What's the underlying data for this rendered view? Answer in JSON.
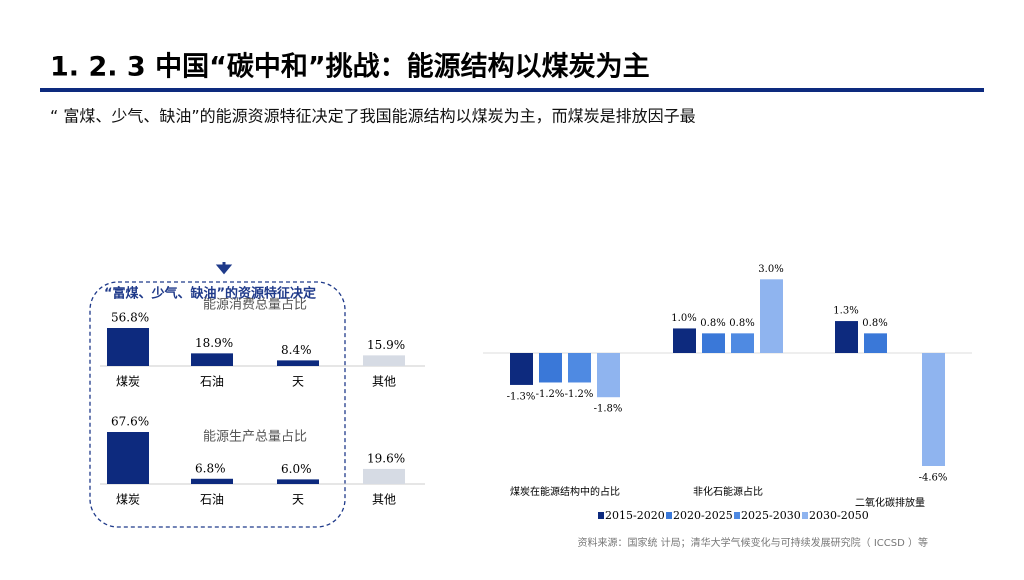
{
  "header": {
    "title": "1. 2. 3  中国“碳中和”挑战：能源结构以煤炭为主",
    "subtitle": "“ 富煤、少气、缺油”的能源资源特征决定了我国能源结构以煤炭为主，而煤炭是排放因子最"
  },
  "box_label": "“富煤、少气、缺油”的资源特征决定",
  "source": "资料来源：国家统 计局；清华大学气候变化与可持续发展研究院（ ICCSD ）等",
  "chart_data": [
    {
      "type": "bar",
      "title": "能源消费总量占比",
      "categories": [
        "煤炭",
        "石油",
        "天",
        "其他"
      ],
      "values": [
        56.8,
        18.9,
        8.4,
        15.9
      ],
      "value_labels": [
        "56.8%",
        "18.9%",
        "8.4%",
        "15.9%"
      ],
      "colors": [
        "#0d2a7e",
        "#0d2a7e",
        "#0d2a7e",
        "#d6dbe4"
      ]
    },
    {
      "type": "bar",
      "title": "能源生产总量占比",
      "categories": [
        "煤炭",
        "石油",
        "天",
        "其他"
      ],
      "values": [
        67.6,
        6.8,
        6.0,
        19.6
      ],
      "value_labels": [
        "67.6%",
        "6.8%",
        "6.0%",
        "19.6%"
      ],
      "colors": [
        "#0d2a7e",
        "#0d2a7e",
        "#0d2a7e",
        "#d6dbe4"
      ]
    },
    {
      "type": "grouped-bar",
      "categories": [
        "煤炭在能源结构中的占比",
        "非化石能源占比",
        "二氧化碳排放量"
      ],
      "series": [
        {
          "name": "2015-2020",
          "color": "#0d2a7e",
          "values": [
            -1.3,
            1.0,
            1.3
          ],
          "value_labels": [
            "-1.3%",
            "1.0%",
            "1.3%"
          ]
        },
        {
          "name": "2020-2025",
          "color": "#3a78d8",
          "values": [
            -1.2,
            0.8,
            0.8
          ],
          "value_labels": [
            "-1.2%",
            "0.8%",
            "0.8%"
          ]
        },
        {
          "name": "2025-2030",
          "color": "#4f8ae2",
          "values": [
            -1.2,
            0.8,
            null
          ],
          "value_labels": [
            "-1.2%",
            "0.8%",
            null
          ]
        },
        {
          "name": "2030-2050",
          "color": "#8fb4ef",
          "values": [
            -1.8,
            3.0,
            -4.6
          ],
          "value_labels": [
            "-1.8%",
            "3.0%",
            "-4.6%"
          ]
        }
      ]
    }
  ]
}
